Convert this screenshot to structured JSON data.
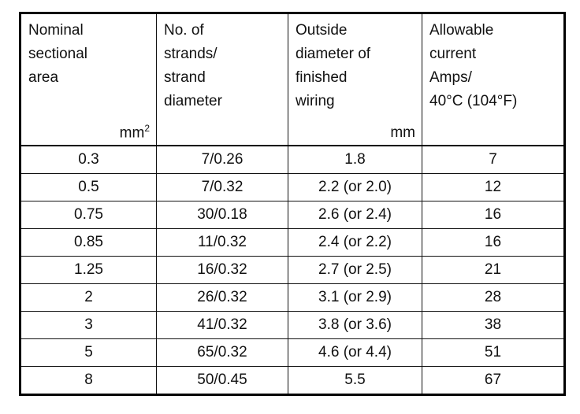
{
  "headers": [
    {
      "lines": [
        "Nominal",
        "sectional",
        "area"
      ],
      "unit": "mm",
      "unit_sup": "2"
    },
    {
      "lines": [
        "No. of",
        "strands/",
        "strand",
        "diameter"
      ],
      "unit": ""
    },
    {
      "lines": [
        "Outside",
        "diameter of",
        "finished",
        "wiring"
      ],
      "unit": "mm"
    },
    {
      "lines": [
        "Allowable",
        "current",
        "Amps/",
        "40°C (104°F)"
      ],
      "unit": ""
    }
  ],
  "rows": [
    [
      "0.3",
      "7/0.26",
      "1.8",
      "7"
    ],
    [
      "0.5",
      "7/0.32",
      "2.2 (or 2.0)",
      "12"
    ],
    [
      "0.75",
      "30/0.18",
      "2.6 (or 2.4)",
      "16"
    ],
    [
      "0.85",
      "11/0.32",
      "2.4 (or 2.2)",
      "16"
    ],
    [
      "1.25",
      "16/0.32",
      "2.7 (or 2.5)",
      "21"
    ],
    [
      "2",
      "26/0.32",
      "3.1 (or 2.9)",
      "28"
    ],
    [
      "3",
      "41/0.32",
      "3.8 (or 3.6)",
      "38"
    ],
    [
      "5",
      "65/0.32",
      "4.6 (or 4.4)",
      "51"
    ],
    [
      "8",
      "50/0.45",
      "5.5",
      "67"
    ]
  ]
}
